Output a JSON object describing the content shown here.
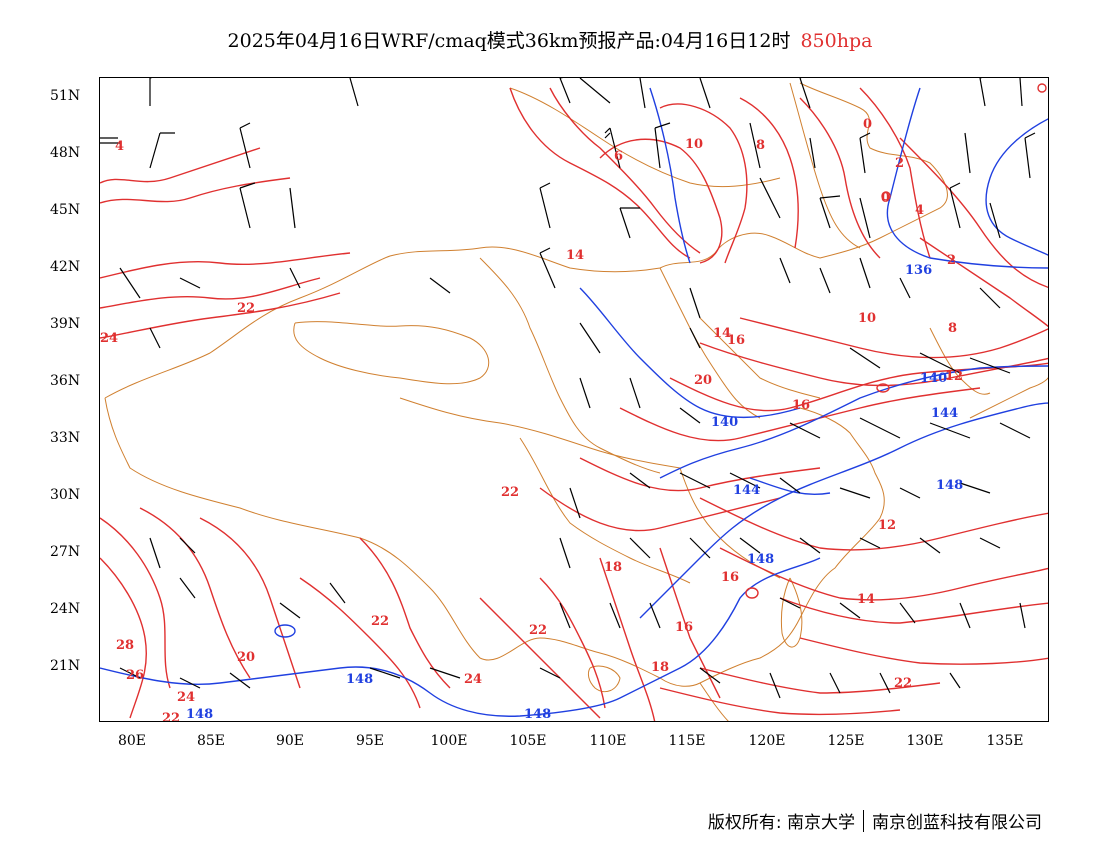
{
  "title": {
    "main": "2025年04月16日WRF/cmaq模式36km预报产品:04月16日12时",
    "level": "850hpa"
  },
  "lat_labels": [
    "51N",
    "48N",
    "45N",
    "42N",
    "39N",
    "36N",
    "33N",
    "30N",
    "27N",
    "24N",
    "21N"
  ],
  "lon_labels": [
    "80E",
    "85E",
    "90E",
    "95E",
    "100E",
    "105E",
    "110E",
    "115E",
    "120E",
    "125E",
    "130E",
    "135E"
  ],
  "temperature_labels": [
    "4",
    "6",
    "10",
    "8",
    "0",
    "2",
    "0",
    "4",
    "2",
    "14",
    "22",
    "24",
    "16",
    "14",
    "10",
    "8",
    "12",
    "20",
    "16",
    "22",
    "18",
    "16",
    "12",
    "14",
    "16",
    "18",
    "22",
    "22",
    "20",
    "28",
    "26",
    "24",
    "22",
    "24",
    "22"
  ],
  "height_labels": [
    "136",
    "140",
    "144",
    "140",
    "144",
    "148",
    "148",
    "148",
    "148",
    "148"
  ],
  "copyright": {
    "left": "版权所有: 南京大学",
    "right": "南京创蓝科技有限公司"
  },
  "colors": {
    "temperature": "#e03030",
    "height": "#2040e0",
    "boundary": "#d08030",
    "wind": "#000000"
  }
}
